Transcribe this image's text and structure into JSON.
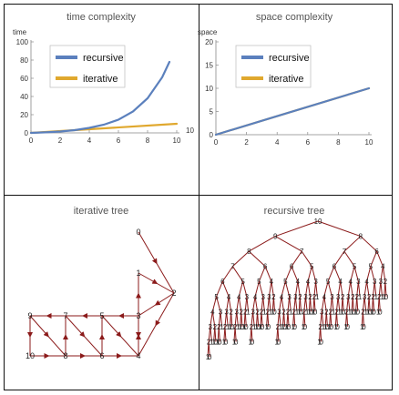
{
  "chart_data": [
    {
      "type": "line",
      "title": "time complexity",
      "ylabel": "time",
      "xlim": [
        0,
        10
      ],
      "ylim": [
        0,
        100
      ],
      "x_ticks": [
        "0",
        "2",
        "4",
        "6",
        "8",
        "10"
      ],
      "y_ticks": [
        "0",
        "20",
        "40",
        "60",
        "80",
        "100"
      ],
      "overflow_label": "10",
      "legend": "top-left inside",
      "series": [
        {
          "name": "recursive",
          "color": "#5b80bd",
          "x": [
            0,
            1,
            2,
            3,
            4,
            5,
            6,
            7,
            8,
            9,
            9.5
          ],
          "y": [
            0,
            0.6,
            1.5,
            3,
            5.5,
            9,
            14.5,
            23.5,
            38,
            61,
            78
          ]
        },
        {
          "name": "iterative",
          "color": "#e0a82e",
          "x": [
            0,
            10
          ],
          "y": [
            0,
            10
          ]
        }
      ]
    },
    {
      "type": "line",
      "title": "space complexity",
      "ylabel": "space",
      "xlim": [
        0,
        10
      ],
      "ylim": [
        0,
        20
      ],
      "x_ticks": [
        "0",
        "2",
        "4",
        "6",
        "8",
        "10"
      ],
      "y_ticks": [
        "0",
        "5",
        "10",
        "15",
        "20"
      ],
      "legend": "top-left inside",
      "series": [
        {
          "name": "recursive",
          "color": "#5b80bd",
          "x": [
            0,
            10
          ],
          "y": [
            0,
            10
          ]
        },
        {
          "name": "iterative",
          "color": "#e0a82e",
          "x": [
            0,
            10
          ],
          "y": [
            0,
            10
          ]
        }
      ]
    },
    {
      "type": "graph",
      "title": "iterative tree",
      "nodes": [
        "0",
        "1",
        "2",
        "3",
        "4",
        "5",
        "6",
        "7",
        "8",
        "9",
        "10"
      ],
      "edges": [
        [
          "0",
          "2"
        ],
        [
          "1",
          "2"
        ],
        [
          "2",
          "3"
        ],
        [
          "2",
          "4"
        ],
        [
          "3",
          "1"
        ],
        [
          "3",
          "5"
        ],
        [
          "3",
          "4"
        ],
        [
          "5",
          "7"
        ],
        [
          "7",
          "9"
        ],
        [
          "9",
          "10"
        ],
        [
          "10",
          "8"
        ],
        [
          "8",
          "6"
        ],
        [
          "6",
          "4"
        ],
        [
          "4",
          "3"
        ],
        [
          "9",
          "8"
        ],
        [
          "8",
          "7"
        ],
        [
          "7",
          "6"
        ],
        [
          "6",
          "5"
        ],
        [
          "5",
          "4"
        ]
      ]
    },
    {
      "type": "tree",
      "title": "recursive tree",
      "root": "10",
      "rule": "each node n has children n-1 and n-2 until n < 2"
    }
  ]
}
